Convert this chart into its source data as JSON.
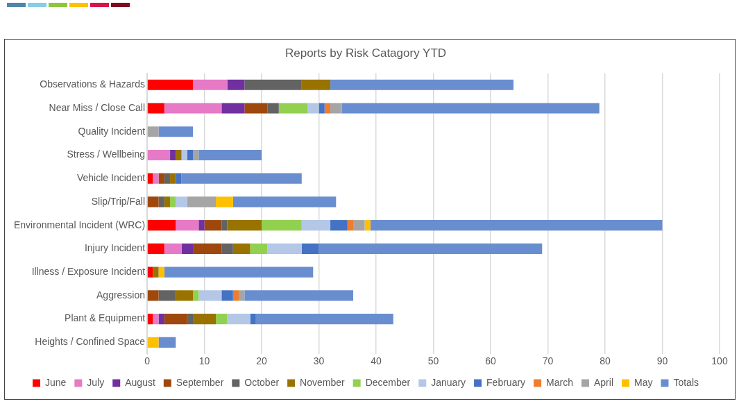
{
  "chart_data": {
    "type": "bar",
    "title": "Reports by Risk Catagory YTD",
    "orientation": "horizontal",
    "stacked": true,
    "categories": [
      "Observations & Hazards",
      "Near Miss / Close Call",
      "Quality Incident",
      "Stress / Wellbeing",
      "Vehicle Incident",
      "Slip/Trip/Fall",
      "Environmental Incident (WRC)",
      "Injury Incident",
      "Illness / Exposure Incident",
      "Aggression",
      "Plant & Equipment",
      "Heights / Confined Space"
    ],
    "series": [
      {
        "name": "June",
        "color": "#ff0000",
        "values": [
          8,
          3,
          null,
          null,
          1,
          null,
          5,
          3,
          1,
          null,
          1,
          null
        ]
      },
      {
        "name": "July",
        "color": "#e77ac6",
        "values": [
          6,
          10,
          null,
          4,
          1,
          null,
          4,
          3,
          null,
          null,
          1,
          null
        ]
      },
      {
        "name": "August",
        "color": "#7030a0",
        "values": [
          3,
          4,
          null,
          1,
          null,
          null,
          1,
          2,
          null,
          null,
          1,
          null
        ]
      },
      {
        "name": "September",
        "color": "#9e480e",
        "values": [
          null,
          4,
          null,
          null,
          1,
          2,
          3,
          5,
          null,
          2,
          4,
          null
        ]
      },
      {
        "name": "October",
        "color": "#636363",
        "values": [
          10,
          2,
          null,
          null,
          1,
          1,
          1,
          2,
          null,
          3,
          1,
          null
        ]
      },
      {
        "name": "November",
        "color": "#997300",
        "values": [
          5,
          null,
          null,
          1,
          1,
          1,
          6,
          3,
          1,
          3,
          4,
          null
        ]
      },
      {
        "name": "December",
        "color": "#92d050",
        "values": [
          null,
          5,
          null,
          null,
          null,
          1,
          7,
          3,
          null,
          1,
          2,
          null
        ]
      },
      {
        "name": "January",
        "color": "#b4c7e7",
        "values": [
          null,
          2,
          null,
          1,
          null,
          2,
          5,
          6,
          null,
          4,
          4,
          null
        ]
      },
      {
        "name": "February",
        "color": "#4472c4",
        "values": [
          null,
          1,
          null,
          1,
          1,
          null,
          3,
          3,
          null,
          2,
          1,
          null
        ]
      },
      {
        "name": "March",
        "color": "#ed7d31",
        "values": [
          null,
          1,
          null,
          null,
          null,
          null,
          1,
          null,
          null,
          1,
          null,
          null
        ]
      },
      {
        "name": "April",
        "color": "#a5a5a5",
        "values": [
          null,
          2,
          2,
          1,
          null,
          5,
          2,
          null,
          null,
          1,
          null,
          null
        ]
      },
      {
        "name": "May",
        "color": "#ffc000",
        "values": [
          null,
          null,
          null,
          null,
          null,
          3,
          1,
          null,
          1,
          null,
          null,
          2
        ]
      },
      {
        "name": "Totals",
        "color": "#698ed0",
        "values": [
          32,
          45,
          6,
          11,
          21,
          18,
          51,
          39,
          26,
          19,
          24,
          3
        ]
      }
    ],
    "xlim": [
      0,
      100
    ],
    "xticks": [
      0,
      10,
      20,
      30,
      40,
      50,
      60,
      70,
      80,
      90,
      100
    ],
    "grid": "x",
    "legend": "bottom"
  }
}
